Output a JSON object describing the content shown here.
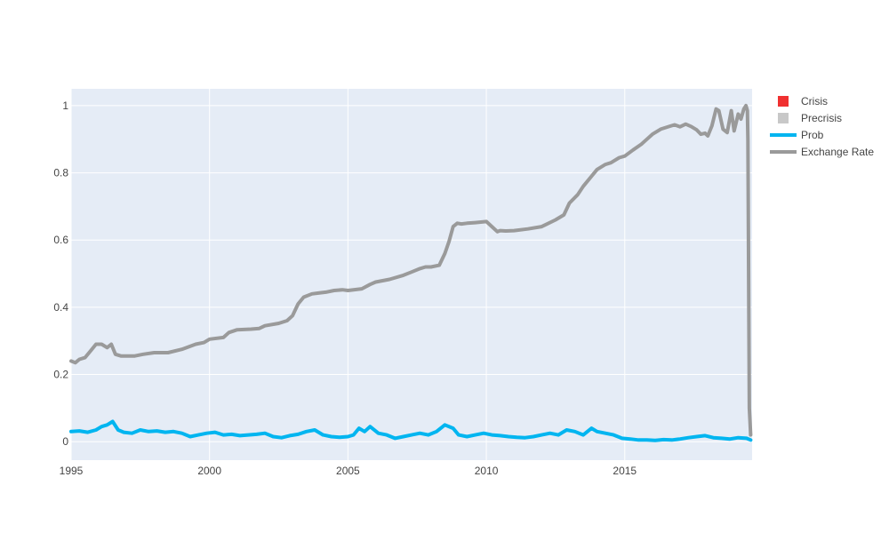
{
  "chart_data": {
    "type": "line",
    "title": "",
    "xlabel": "",
    "ylabel": "",
    "xlim": [
      1995.0,
      2019.6
    ],
    "ylim": [
      -0.055,
      1.05
    ],
    "grid": true,
    "legend_position": "top-right",
    "x_ticks": [
      {
        "value": 1995,
        "label": "1995"
      },
      {
        "value": 2000,
        "label": "2000"
      },
      {
        "value": 2005,
        "label": "2005"
      },
      {
        "value": 2010,
        "label": "2010"
      },
      {
        "value": 2015,
        "label": "2015"
      }
    ],
    "y_ticks": [
      {
        "value": 0,
        "label": "0"
      },
      {
        "value": 0.2,
        "label": "0.2"
      },
      {
        "value": 0.4,
        "label": "0.4"
      },
      {
        "value": 0.6,
        "label": "0.6"
      },
      {
        "value": 0.8,
        "label": "0.8"
      },
      {
        "value": 1,
        "label": "1"
      }
    ],
    "legend": [
      {
        "name": "Crisis",
        "symbol": "square",
        "color": "#f03030"
      },
      {
        "name": "Precrisis",
        "symbol": "square",
        "color": "#c8c8c8"
      },
      {
        "name": "Prob",
        "symbol": "line",
        "color": "#00b5f0"
      },
      {
        "name": "Exchange Rate",
        "symbol": "line",
        "color": "#9a9a9a"
      }
    ],
    "series": [
      {
        "name": "Exchange Rate",
        "color": "#9a9a9a",
        "x": [
          1995.0,
          1995.15,
          1995.3,
          1995.5,
          1995.7,
          1995.9,
          1996.1,
          1996.3,
          1996.45,
          1996.6,
          1996.8,
          1997.0,
          1997.3,
          1997.6,
          1998.0,
          1998.5,
          1999.0,
          1999.5,
          1999.8,
          2000.0,
          2000.5,
          2000.7,
          2001.0,
          2001.5,
          2001.8,
          2002.0,
          2002.5,
          2002.8,
          2003.0,
          2003.2,
          2003.4,
          2003.7,
          2004.0,
          2004.2,
          2004.5,
          2004.8,
          2005.0,
          2005.5,
          2005.8,
          2006.0,
          2006.5,
          2007.0,
          2007.3,
          2007.6,
          2007.8,
          2008.0,
          2008.3,
          2008.5,
          2008.65,
          2008.8,
          2008.95,
          2009.1,
          2009.3,
          2009.6,
          2010.0,
          2010.2,
          2010.4,
          2010.5,
          2010.7,
          2011.0,
          2011.5,
          2012.0,
          2012.5,
          2012.8,
          2013.0,
          2013.3,
          2013.5,
          2013.8,
          2014.0,
          2014.3,
          2014.5,
          2014.8,
          2015.0,
          2015.3,
          2015.6,
          2015.8,
          2016.0,
          2016.3,
          2016.6,
          2016.8,
          2017.0,
          2017.2,
          2017.4,
          2017.6,
          2017.75,
          2017.9,
          2018.0,
          2018.15,
          2018.3,
          2018.4,
          2018.55,
          2018.7,
          2018.85,
          2018.95,
          2019.1,
          2019.2,
          2019.3,
          2019.38,
          2019.43,
          2019.45,
          2019.5,
          2019.55
        ],
        "y": [
          0.24,
          0.235,
          0.245,
          0.25,
          0.27,
          0.29,
          0.29,
          0.28,
          0.29,
          0.26,
          0.255,
          0.255,
          0.255,
          0.26,
          0.265,
          0.265,
          0.275,
          0.29,
          0.295,
          0.305,
          0.31,
          0.325,
          0.333,
          0.335,
          0.337,
          0.345,
          0.352,
          0.36,
          0.375,
          0.41,
          0.43,
          0.44,
          0.443,
          0.445,
          0.45,
          0.452,
          0.45,
          0.455,
          0.468,
          0.475,
          0.483,
          0.495,
          0.505,
          0.515,
          0.52,
          0.52,
          0.525,
          0.56,
          0.595,
          0.64,
          0.65,
          0.648,
          0.65,
          0.652,
          0.655,
          0.64,
          0.625,
          0.628,
          0.627,
          0.628,
          0.633,
          0.64,
          0.66,
          0.675,
          0.71,
          0.735,
          0.76,
          0.79,
          0.81,
          0.825,
          0.83,
          0.845,
          0.85,
          0.868,
          0.885,
          0.9,
          0.915,
          0.93,
          0.938,
          0.943,
          0.937,
          0.945,
          0.938,
          0.928,
          0.915,
          0.918,
          0.91,
          0.94,
          0.99,
          0.985,
          0.93,
          0.92,
          0.985,
          0.925,
          0.975,
          0.96,
          0.99,
          1.0,
          0.985,
          0.9,
          0.1,
          0.02
        ]
      },
      {
        "name": "Prob",
        "color": "#00b5f0",
        "x": [
          1995.0,
          1995.3,
          1995.6,
          1995.9,
          1996.1,
          1996.3,
          1996.5,
          1996.7,
          1996.9,
          1997.2,
          1997.5,
          1997.8,
          1998.1,
          1998.4,
          1998.7,
          1999.0,
          1999.3,
          1999.6,
          1999.9,
          2000.2,
          2000.5,
          2000.8,
          2001.1,
          2001.4,
          2001.7,
          2002.0,
          2002.3,
          2002.6,
          2002.9,
          2003.2,
          2003.5,
          2003.8,
          2004.1,
          2004.4,
          2004.7,
          2005.0,
          2005.2,
          2005.4,
          2005.6,
          2005.8,
          2006.1,
          2006.4,
          2006.7,
          2007.0,
          2007.3,
          2007.6,
          2007.9,
          2008.2,
          2008.5,
          2008.8,
          2009.0,
          2009.3,
          2009.6,
          2009.9,
          2010.2,
          2010.5,
          2010.8,
          2011.1,
          2011.4,
          2011.7,
          2012.0,
          2012.3,
          2012.6,
          2012.9,
          2013.2,
          2013.5,
          2013.8,
          2014.0,
          2014.3,
          2014.6,
          2014.9,
          2015.2,
          2015.5,
          2015.8,
          2016.1,
          2016.4,
          2016.7,
          2017.0,
          2017.3,
          2017.6,
          2017.9,
          2018.2,
          2018.5,
          2018.8,
          2019.1,
          2019.4,
          2019.55
        ],
        "y": [
          0.03,
          0.032,
          0.028,
          0.035,
          0.045,
          0.05,
          0.06,
          0.035,
          0.028,
          0.025,
          0.035,
          0.03,
          0.032,
          0.028,
          0.03,
          0.025,
          0.015,
          0.02,
          0.025,
          0.028,
          0.02,
          0.022,
          0.018,
          0.02,
          0.022,
          0.025,
          0.015,
          0.012,
          0.018,
          0.022,
          0.03,
          0.035,
          0.02,
          0.015,
          0.013,
          0.015,
          0.02,
          0.04,
          0.03,
          0.045,
          0.025,
          0.02,
          0.01,
          0.015,
          0.02,
          0.025,
          0.02,
          0.03,
          0.05,
          0.04,
          0.02,
          0.015,
          0.02,
          0.025,
          0.02,
          0.018,
          0.015,
          0.013,
          0.012,
          0.015,
          0.02,
          0.025,
          0.02,
          0.035,
          0.03,
          0.02,
          0.04,
          0.03,
          0.025,
          0.02,
          0.01,
          0.008,
          0.005,
          0.005,
          0.004,
          0.006,
          0.005,
          0.008,
          0.012,
          0.015,
          0.018,
          0.012,
          0.01,
          0.008,
          0.012,
          0.01,
          0.005
        ]
      }
    ]
  }
}
